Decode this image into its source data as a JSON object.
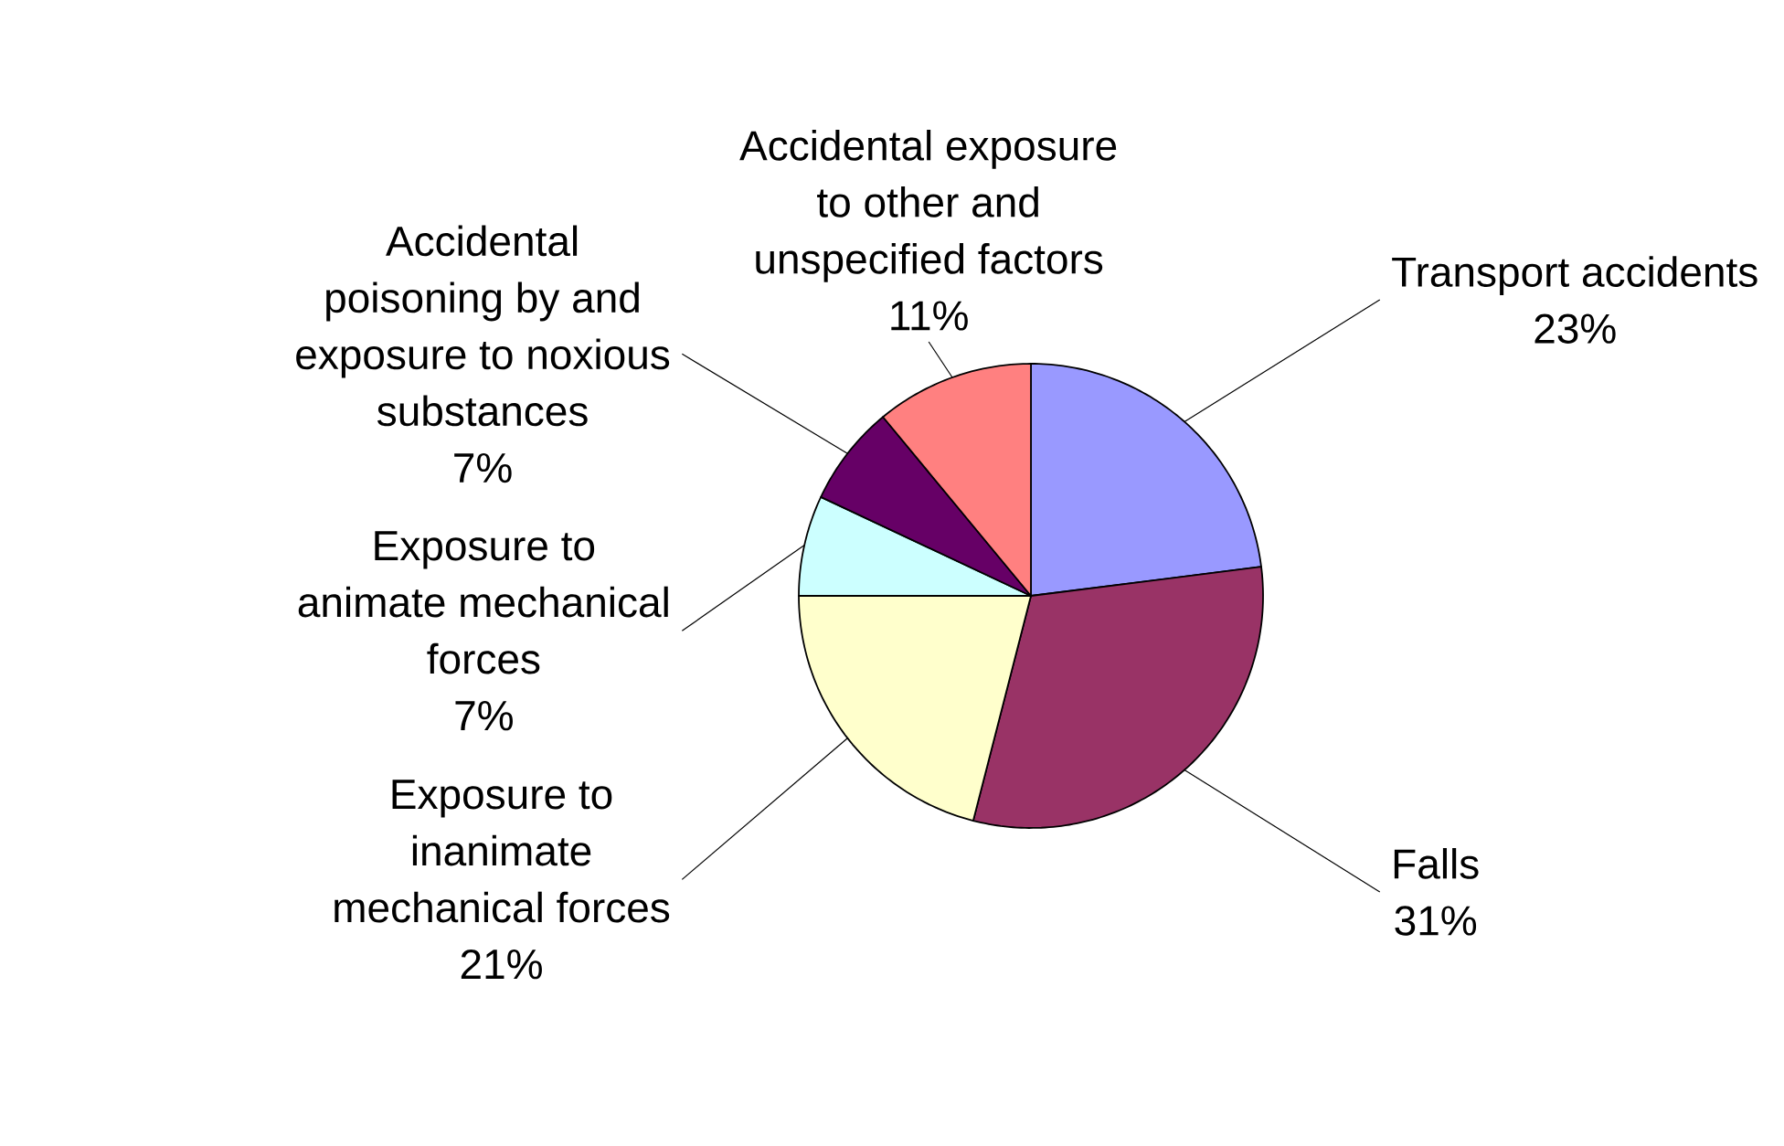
{
  "chart_data": {
    "type": "pie",
    "categories": [
      "Transport accidents",
      "Falls",
      "Exposure to inanimate mechanical forces",
      "Exposure to animate mechanical forces",
      "Accidental poisoning by and exposure to noxious substances",
      "Accidental exposure to other and unspecified factors"
    ],
    "values": [
      23,
      31,
      21,
      7,
      7,
      11
    ],
    "colors": [
      "#9999ff",
      "#993366",
      "#ffffcc",
      "#ccffff",
      "#660066",
      "#ff8080"
    ],
    "value_labels": [
      "23%",
      "31%",
      "21%",
      "7%",
      "7%",
      "11%"
    ]
  }
}
